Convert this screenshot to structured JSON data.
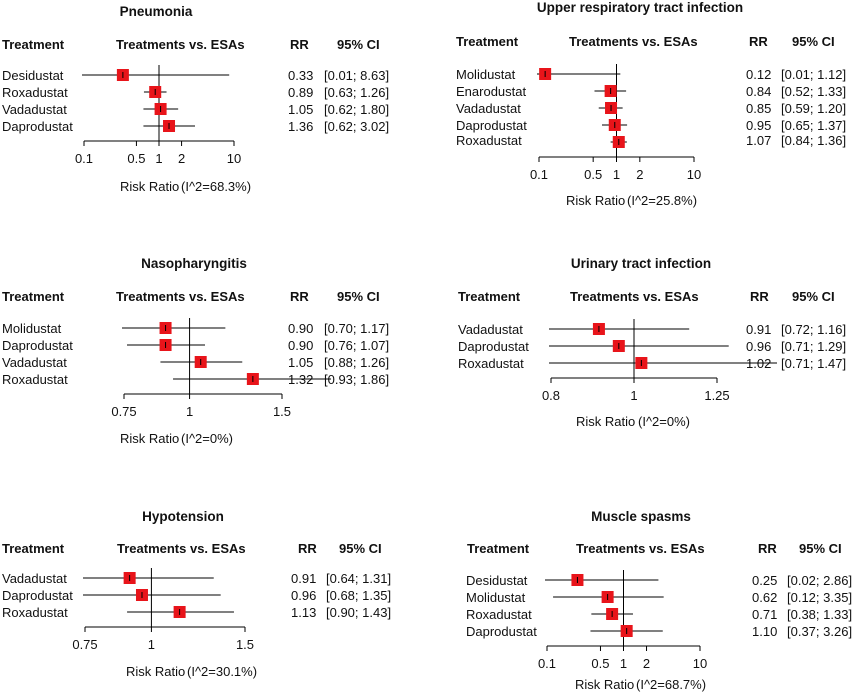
{
  "header_labels": {
    "treatment": "Treatment",
    "comparison": "Treatments vs. ESAs",
    "rr": "RR",
    "ci": "95% CI"
  },
  "colors": {
    "marker": "#e8141a",
    "line": "#000000"
  },
  "chart_data": [
    {
      "type": "forest",
      "scale": "log",
      "title": "Pneumonia",
      "rows": [
        {
          "label": "Desidustat",
          "rr": 0.33,
          "lower": 0.01,
          "upper": 8.63,
          "rr_text": "0.33",
          "ci_text": "[0.01; 8.63]"
        },
        {
          "label": "Roxadustat",
          "rr": 0.89,
          "lower": 0.63,
          "upper": 1.26,
          "rr_text": "0.89",
          "ci_text": "[0.63; 1.26]"
        },
        {
          "label": "Vadadustat",
          "rr": 1.05,
          "lower": 0.62,
          "upper": 1.8,
          "rr_text": "1.05",
          "ci_text": "[0.62; 1.80]"
        },
        {
          "label": "Daprodustat",
          "rr": 1.36,
          "lower": 0.62,
          "upper": 3.02,
          "rr_text": "1.36",
          "ci_text": "[0.62; 3.02]"
        }
      ],
      "xlim": [
        0.1,
        10
      ],
      "ticks": [
        {
          "value": 0.1,
          "label": "0.1"
        },
        {
          "value": 0.5,
          "label": "0.5"
        },
        {
          "value": 1,
          "label": "1"
        },
        {
          "value": 2,
          "label": "2"
        },
        {
          "value": 10,
          "label": "10"
        }
      ],
      "xlabel": "Risk Ratio",
      "heterogeneity": "(I^2=68.3%)"
    },
    {
      "type": "forest",
      "scale": "log",
      "title": "Upper respiratory tract infection",
      "rows": [
        {
          "label": "Molidustat",
          "rr": 0.12,
          "lower": 0.01,
          "upper": 1.12,
          "rr_text": "0.12",
          "ci_text": "[0.01; 1.12]"
        },
        {
          "label": "Enarodustat",
          "rr": 0.84,
          "lower": 0.52,
          "upper": 1.33,
          "rr_text": "0.84",
          "ci_text": "[0.52; 1.33]"
        },
        {
          "label": "Vadadustat",
          "rr": 0.85,
          "lower": 0.59,
          "upper": 1.2,
          "rr_text": "0.85",
          "ci_text": "[0.59; 1.20]"
        },
        {
          "label": "Daprodustat",
          "rr": 0.95,
          "lower": 0.65,
          "upper": 1.37,
          "rr_text": "0.95",
          "ci_text": "[0.65; 1.37]"
        },
        {
          "label": "Roxadustat",
          "rr": 1.07,
          "lower": 0.84,
          "upper": 1.36,
          "rr_text": "1.07",
          "ci_text": "[0.84; 1.36]"
        }
      ],
      "xlim": [
        0.1,
        10
      ],
      "ticks": [
        {
          "value": 0.1,
          "label": "0.1"
        },
        {
          "value": 0.5,
          "label": "0.5"
        },
        {
          "value": 1,
          "label": "1"
        },
        {
          "value": 2,
          "label": "2"
        },
        {
          "value": 10,
          "label": "10"
        }
      ],
      "xlabel": "Risk Ratio",
      "heterogeneity": "(I^2=25.8%)"
    },
    {
      "type": "forest",
      "scale": "log",
      "title": "Nasopharyngitis",
      "rows": [
        {
          "label": "Molidustat",
          "rr": 0.9,
          "lower": 0.7,
          "upper": 1.17,
          "rr_text": "0.90",
          "ci_text": "[0.70; 1.17]"
        },
        {
          "label": "Daprodustat",
          "rr": 0.9,
          "lower": 0.76,
          "upper": 1.07,
          "rr_text": "0.90",
          "ci_text": "[0.76; 1.07]"
        },
        {
          "label": "Vadadustat",
          "rr": 1.05,
          "lower": 0.88,
          "upper": 1.26,
          "rr_text": "1.05",
          "ci_text": "[0.88; 1.26]"
        },
        {
          "label": "Roxadustat",
          "rr": 1.32,
          "lower": 0.93,
          "upper": 1.86,
          "rr_text": "1.32",
          "ci_text": "[0.93; 1.86]"
        }
      ],
      "xlim": [
        0.75,
        1.5
      ],
      "ticks": [
        {
          "value": 0.75,
          "label": "0.75"
        },
        {
          "value": 1,
          "label": "1"
        },
        {
          "value": 1.5,
          "label": "1.5"
        }
      ],
      "xlabel": "Risk Ratio",
      "heterogeneity": "(I^2=0%)"
    },
    {
      "type": "forest",
      "scale": "log",
      "title": "Urinary tract infection",
      "rows": [
        {
          "label": "Vadadustat",
          "rr": 0.91,
          "lower": 0.72,
          "upper": 1.16,
          "rr_text": "0.91",
          "ci_text": "[0.72; 1.16]"
        },
        {
          "label": "Daprodustat",
          "rr": 0.96,
          "lower": 0.71,
          "upper": 1.29,
          "rr_text": "0.96",
          "ci_text": "[0.71; 1.29]"
        },
        {
          "label": "Roxadustat",
          "rr": 1.02,
          "lower": 0.71,
          "upper": 1.47,
          "rr_text": "1.02",
          "ci_text": "[0.71; 1.47]"
        }
      ],
      "xlim": [
        0.8,
        1.25
      ],
      "ticks": [
        {
          "value": 0.8,
          "label": "0.8"
        },
        {
          "value": 1,
          "label": "1"
        },
        {
          "value": 1.25,
          "label": "1.25"
        }
      ],
      "xlabel": "Risk Ratio",
      "heterogeneity": "(I^2=0%)"
    },
    {
      "type": "forest",
      "scale": "log",
      "title": "Hypotension",
      "rows": [
        {
          "label": "Vadadustat",
          "rr": 0.91,
          "lower": 0.64,
          "upper": 1.31,
          "rr_text": "0.91",
          "ci_text": "[0.64; 1.31]"
        },
        {
          "label": "Daprodustat",
          "rr": 0.96,
          "lower": 0.68,
          "upper": 1.35,
          "rr_text": "0.96",
          "ci_text": "[0.68; 1.35]"
        },
        {
          "label": "Roxadustat",
          "rr": 1.13,
          "lower": 0.9,
          "upper": 1.43,
          "rr_text": "1.13",
          "ci_text": "[0.90; 1.43]"
        }
      ],
      "xlim": [
        0.75,
        1.5
      ],
      "ticks": [
        {
          "value": 0.75,
          "label": "0.75"
        },
        {
          "value": 1,
          "label": "1"
        },
        {
          "value": 1.5,
          "label": "1.5"
        }
      ],
      "xlabel": "Risk Ratio",
      "heterogeneity": "(I^2=30.1%)"
    },
    {
      "type": "forest",
      "scale": "log",
      "title": "Muscle spasms",
      "rows": [
        {
          "label": "Desidustat",
          "rr": 0.25,
          "lower": 0.02,
          "upper": 2.86,
          "rr_text": "0.25",
          "ci_text": "[0.02; 2.86]"
        },
        {
          "label": "Molidustat",
          "rr": 0.62,
          "lower": 0.12,
          "upper": 3.35,
          "rr_text": "0.62",
          "ci_text": "[0.12; 3.35]"
        },
        {
          "label": "Roxadustat",
          "rr": 0.71,
          "lower": 0.38,
          "upper": 1.33,
          "rr_text": "0.71",
          "ci_text": "[0.38; 1.33]"
        },
        {
          "label": "Daprodustat",
          "rr": 1.1,
          "lower": 0.37,
          "upper": 3.26,
          "rr_text": "1.10",
          "ci_text": "[0.37; 3.26]"
        }
      ],
      "xlim": [
        0.1,
        10
      ],
      "ticks": [
        {
          "value": 0.1,
          "label": "0.1"
        },
        {
          "value": 0.5,
          "label": "0.5"
        },
        {
          "value": 1,
          "label": "1"
        },
        {
          "value": 2,
          "label": "2"
        },
        {
          "value": 10,
          "label": "10"
        }
      ],
      "xlabel": "Risk Ratio",
      "heterogeneity": "(I^2=68.7%)"
    }
  ]
}
